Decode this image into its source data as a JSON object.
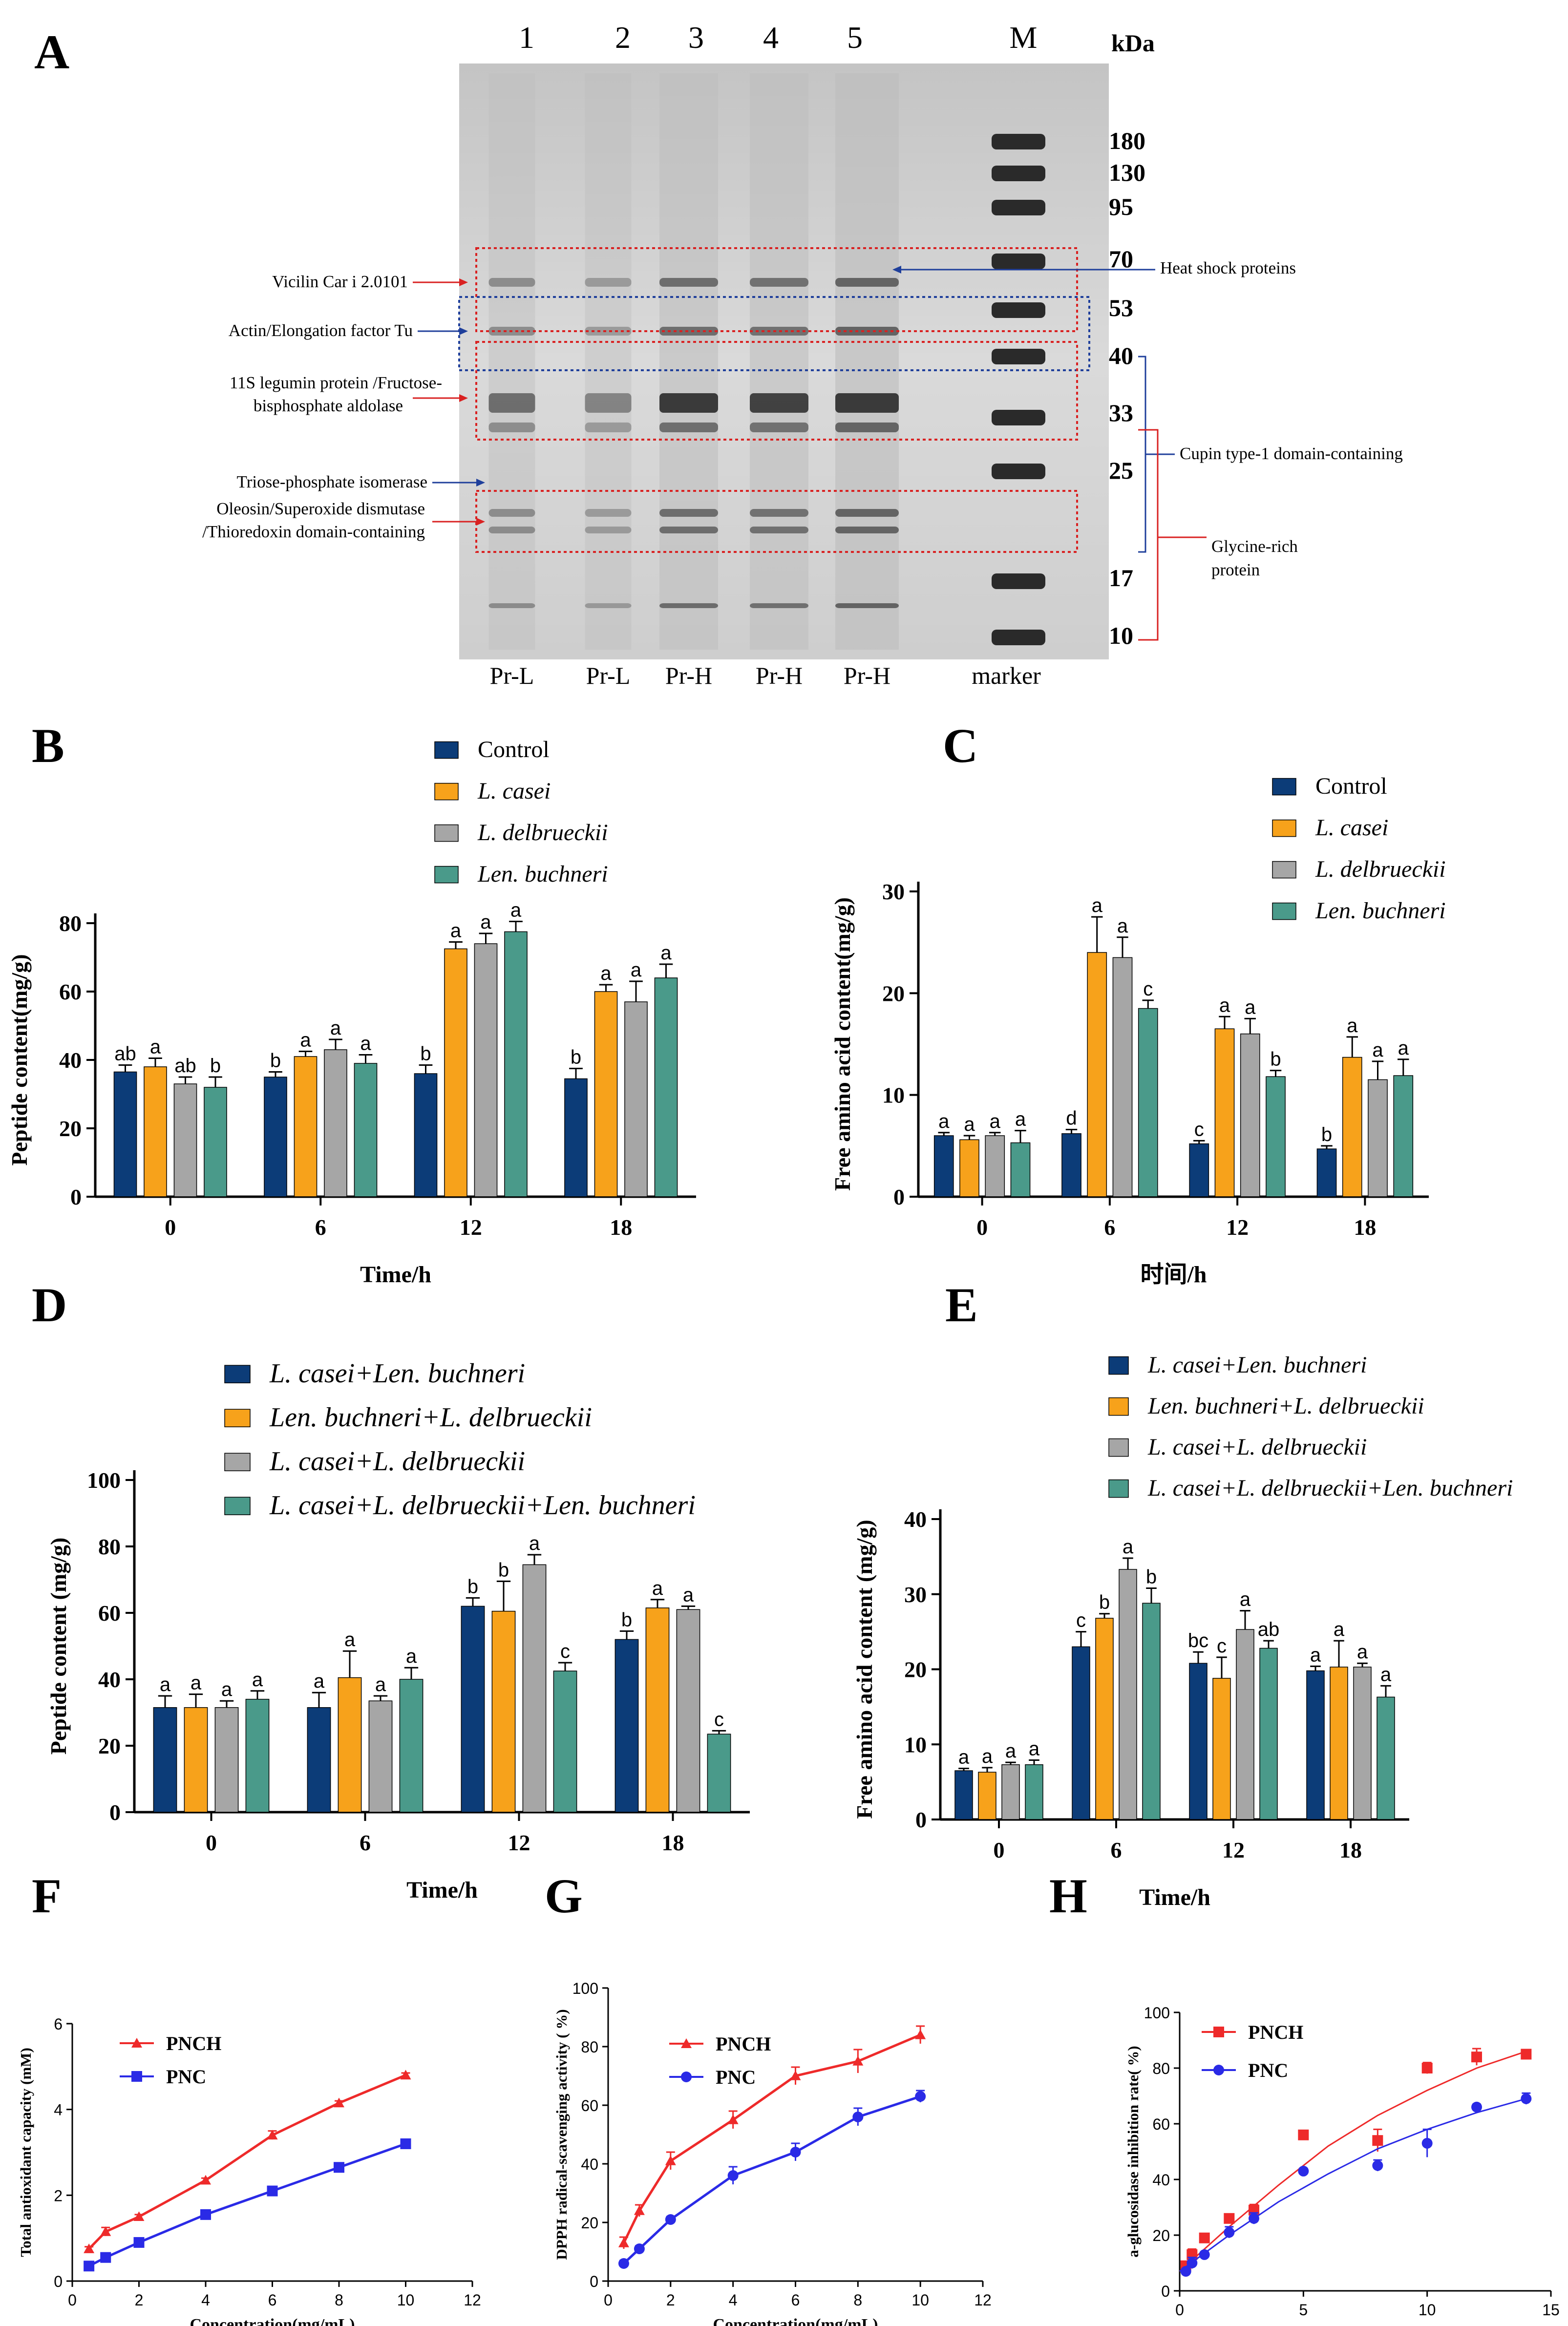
{
  "panel_labels": [
    "A",
    "B",
    "C",
    "D",
    "E",
    "F",
    "G",
    "H"
  ],
  "colors": {
    "navy": "#0c3c78",
    "orange": "#f7a21b",
    "gray": "#a6a6a6",
    "teal": "#4a9a8a",
    "red": "#ee2a2a",
    "blue": "#2a2ae6",
    "box_red": "#d92121",
    "box_blue": "#1f3f9b"
  },
  "gel": {
    "lane_numbers": [
      "1",
      "2",
      "3",
      "4",
      "5",
      "M"
    ],
    "lane_labels": [
      "Pr-L",
      "Pr-L",
      "Pr-H",
      "Pr-H",
      "Pr-H",
      "marker"
    ],
    "kda_label": "kDa",
    "markers": [
      "180",
      "130",
      "95",
      "70",
      "53",
      "40",
      "33",
      "25",
      "17",
      "10"
    ],
    "left_annotations": [
      "Vicilin Car i 2.0101",
      "Actin/Elongation factor Tu",
      "11S legumin protein /Fructose-",
      "bisphosphate aldolase",
      "Triose-phosphate isomerase",
      "Oleosin/Superoxide dismutase",
      "/Thioredoxin domain-containing"
    ],
    "right_annotations": [
      "Heat shock proteins",
      "Cupin type-1 domain-containing",
      "Glycine-rich",
      "protein"
    ]
  },
  "chart_data": [
    {
      "panel": "B",
      "type": "bar",
      "categories": [
        "0",
        "6",
        "12",
        "18"
      ],
      "xlabel": "Time/h",
      "ylabel": "Peptide content(mg/g)",
      "ylim": [
        0,
        80
      ],
      "yticks": [
        "0",
        "20",
        "40",
        "60",
        "80"
      ],
      "series": [
        {
          "name": "Control",
          "italic": false,
          "values": [
            36.5,
            35,
            36,
            34.5
          ],
          "err": [
            2,
            1.5,
            2.5,
            3
          ],
          "letters": [
            "ab",
            "b",
            "b",
            "b"
          ]
        },
        {
          "name": "L. casei",
          "italic": true,
          "values": [
            38,
            41,
            72.5,
            60
          ],
          "err": [
            2.5,
            1.5,
            2,
            2
          ],
          "letters": [
            "a",
            "a",
            "a",
            "a"
          ]
        },
        {
          "name": "L. delbrueckii",
          "italic": true,
          "values": [
            33,
            43,
            74,
            57
          ],
          "err": [
            2,
            3,
            3,
            6
          ],
          "letters": [
            "ab",
            "a",
            "a",
            "a"
          ]
        },
        {
          "name": "Len. buchneri",
          "italic": true,
          "values": [
            32,
            39,
            77.5,
            64
          ],
          "err": [
            3,
            2.5,
            3,
            4
          ],
          "letters": [
            "b",
            "a",
            "a",
            "a"
          ]
        }
      ]
    },
    {
      "panel": "C",
      "type": "bar",
      "categories": [
        "0",
        "6",
        "12",
        "18"
      ],
      "xlabel": "时间/h",
      "ylabel": "Free amino acid content(mg/g)",
      "ylim": [
        0,
        30
      ],
      "yticks": [
        "0",
        "10",
        "20",
        "30"
      ],
      "series": [
        {
          "name": "Control",
          "italic": false,
          "values": [
            6,
            6.2,
            5.2,
            4.7
          ],
          "err": [
            0.3,
            0.4,
            0.3,
            0.3
          ],
          "letters": [
            "a",
            "d",
            "c",
            "b"
          ]
        },
        {
          "name": "L. casei",
          "italic": true,
          "values": [
            5.6,
            24,
            16.5,
            13.7
          ],
          "err": [
            0.4,
            3.5,
            1.2,
            2
          ],
          "letters": [
            "a",
            "a",
            "a",
            "a"
          ]
        },
        {
          "name": "L. delbrueckii",
          "italic": true,
          "values": [
            6,
            23.5,
            16,
            11.5
          ],
          "err": [
            0.3,
            2,
            1.5,
            1.8
          ],
          "letters": [
            "a",
            "a",
            "a",
            "a"
          ]
        },
        {
          "name": "Len. buchneri",
          "italic": true,
          "values": [
            5.3,
            18.5,
            11.8,
            11.9
          ],
          "err": [
            1.2,
            0.8,
            0.6,
            1.6
          ],
          "letters": [
            "a",
            "c",
            "b",
            "a"
          ]
        }
      ]
    },
    {
      "panel": "D",
      "type": "bar",
      "categories": [
        "0",
        "6",
        "12",
        "18"
      ],
      "xlabel": "Time/h",
      "ylabel": "Peptide content (mg/g)",
      "ylim": [
        0,
        100
      ],
      "yticks": [
        "0",
        "20",
        "40",
        "60",
        "80",
        "100"
      ],
      "series": [
        {
          "name": "L. casei+Len. buchneri",
          "values": [
            31.5,
            31.5,
            62,
            52
          ],
          "err": [
            3.5,
            4.5,
            2.5,
            2.5
          ],
          "letters": [
            "a",
            "a",
            "b",
            "b"
          ]
        },
        {
          "name": "Len. buchneri+L. delbrueckii",
          "values": [
            31.5,
            40.5,
            60.5,
            61.5
          ],
          "err": [
            4,
            8,
            9,
            2.5
          ],
          "letters": [
            "a",
            "a",
            "b",
            "a"
          ]
        },
        {
          "name": "L. casei+L. delbrueckii",
          "values": [
            31.5,
            33.5,
            74.5,
            61
          ],
          "err": [
            2,
            1.5,
            3,
            1
          ],
          "letters": [
            "a",
            "a",
            "a",
            "a"
          ]
        },
        {
          "name": "L. casei+L. delbrueckii+Len. buchneri",
          "values": [
            34,
            40,
            42.5,
            23.5
          ],
          "err": [
            2.5,
            3.5,
            2.5,
            1
          ],
          "letters": [
            "a",
            "a",
            "c",
            "c"
          ]
        }
      ]
    },
    {
      "panel": "E",
      "type": "bar",
      "categories": [
        "0",
        "6",
        "12",
        "18"
      ],
      "xlabel": "Time/h",
      "ylabel": "Free amino acid content (mg/g)",
      "ylim": [
        0,
        40
      ],
      "yticks": [
        "0",
        "10",
        "20",
        "30",
        "40"
      ],
      "series": [
        {
          "name": "L. casei+Len. buchneri",
          "values": [
            6.5,
            23,
            20.8,
            19.8
          ],
          "err": [
            0.3,
            2,
            1.5,
            0.6
          ],
          "letters": [
            "a",
            "c",
            "bc",
            "a"
          ]
        },
        {
          "name": "Len. buchneri+L. delbrueckii",
          "values": [
            6.3,
            26.8,
            18.8,
            20.3
          ],
          "err": [
            0.6,
            0.6,
            2.8,
            3.5
          ],
          "letters": [
            "a",
            "b",
            "c",
            "a"
          ]
        },
        {
          "name": "L. casei+L. delbrueckii",
          "values": [
            7.3,
            33.3,
            25.3,
            20.3
          ],
          "err": [
            0.3,
            1.5,
            2.5,
            0.5
          ],
          "letters": [
            "a",
            "a",
            "a",
            "a"
          ]
        },
        {
          "name": "L. casei+L. delbrueckii+Len. buchneri",
          "values": [
            7.3,
            28.8,
            22.8,
            16.3
          ],
          "err": [
            0.6,
            2,
            1,
            1.5
          ],
          "letters": [
            "a",
            "b",
            "ab",
            "a"
          ]
        }
      ]
    },
    {
      "panel": "F",
      "type": "line",
      "xlabel": "Concentration(mg/mL)",
      "ylabel": "Total antioxidant capacity (mM)",
      "xlim": [
        0,
        12
      ],
      "ylim": [
        0,
        6
      ],
      "xticks": [
        "0",
        "2",
        "4",
        "6",
        "8",
        "10",
        "12"
      ],
      "yticks": [
        "0",
        "2",
        "4",
        "6"
      ],
      "series": [
        {
          "name": "PNCH",
          "marker": "triangle",
          "x": [
            0.5,
            1,
            2,
            4,
            6,
            8,
            10
          ],
          "y": [
            0.75,
            1.15,
            1.5,
            2.35,
            3.4,
            4.15,
            4.8
          ],
          "err": [
            0.05,
            0.1,
            0.05,
            0.05,
            0.1,
            0.05,
            0.05
          ]
        },
        {
          "name": "PNC",
          "marker": "square",
          "x": [
            0.5,
            1,
            2,
            4,
            6,
            8,
            10
          ],
          "y": [
            0.35,
            0.55,
            0.9,
            1.55,
            2.1,
            2.65,
            3.2
          ],
          "err": [
            0.03,
            0.03,
            0.05,
            0.05,
            0.05,
            0.05,
            0.05
          ]
        }
      ]
    },
    {
      "panel": "G",
      "type": "line",
      "xlabel": "Concentration(mg/mL)",
      "ylabel": "DPPH radical-scavenging activity ( %)",
      "xlim": [
        0,
        12
      ],
      "ylim": [
        0,
        100
      ],
      "xticks": [
        "0",
        "2",
        "4",
        "6",
        "8",
        "10",
        "12"
      ],
      "yticks": [
        "0",
        "20",
        "40",
        "60",
        "80",
        "100"
      ],
      "series": [
        {
          "name": "PNCH",
          "marker": "triangle",
          "x": [
            0.5,
            1,
            2,
            4,
            6,
            8,
            10
          ],
          "y": [
            13,
            24,
            41,
            55,
            70,
            75,
            84
          ],
          "err": [
            2,
            2,
            3,
            3,
            3,
            4,
            3
          ]
        },
        {
          "name": "PNC",
          "marker": "circle",
          "x": [
            0.5,
            1,
            2,
            4,
            6,
            8,
            10
          ],
          "y": [
            6,
            11,
            21,
            36,
            44,
            56,
            63
          ],
          "err": [
            1,
            1,
            1,
            3,
            3,
            3,
            2
          ]
        }
      ]
    },
    {
      "panel": "H",
      "type": "scatter",
      "xlabel": "Concentration(mg/mL)",
      "ylabel": "a-glucosidase inhibition rate( %)",
      "xlim": [
        0,
        15
      ],
      "ylim": [
        0,
        100
      ],
      "xticks": [
        "0",
        "5",
        "10",
        "15"
      ],
      "yticks": [
        "0",
        "20",
        "40",
        "60",
        "80",
        "100"
      ],
      "series": [
        {
          "name": "PNCH",
          "marker": "square",
          "x": [
            0.25,
            0.5,
            1,
            2,
            3,
            5,
            8,
            10,
            12,
            14
          ],
          "y": [
            9,
            13,
            19,
            26,
            29,
            56,
            54,
            80,
            84,
            85
          ],
          "err": [
            1,
            2,
            1,
            1,
            2,
            1,
            4,
            2,
            3,
            1
          ],
          "fit": [
            [
              0,
              7
            ],
            [
              2,
              23
            ],
            [
              4,
              38
            ],
            [
              6,
              52
            ],
            [
              8,
              63
            ],
            [
              10,
              72
            ],
            [
              12,
              80
            ],
            [
              14,
              86
            ]
          ]
        },
        {
          "name": "PNC",
          "marker": "circle",
          "x": [
            0.25,
            0.5,
            1,
            2,
            3,
            5,
            8,
            10,
            12,
            14
          ],
          "y": [
            7,
            10,
            13,
            21,
            26,
            43,
            45,
            53,
            66,
            69
          ],
          "err": [
            1,
            2,
            1,
            2,
            2,
            1,
            2,
            5,
            1,
            2
          ],
          "fit": [
            [
              0,
              7
            ],
            [
              2,
              20
            ],
            [
              4,
              32
            ],
            [
              6,
              42
            ],
            [
              8,
              51
            ],
            [
              10,
              58
            ],
            [
              12,
              64
            ],
            [
              14,
              69
            ]
          ]
        }
      ]
    }
  ]
}
